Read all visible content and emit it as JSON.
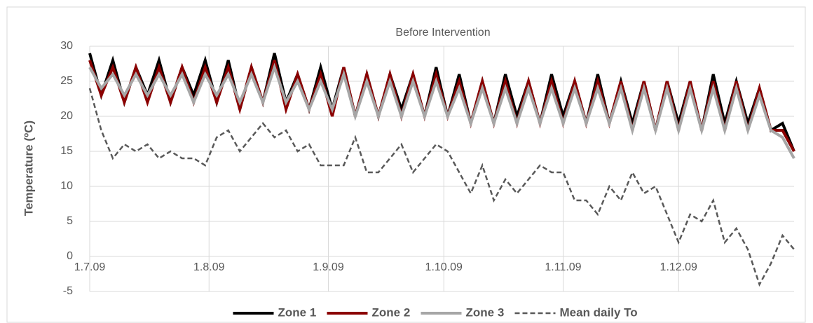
{
  "chart_data": {
    "type": "line",
    "title": "Before Intervention",
    "y_label": "Temperature (ºC)",
    "x": [
      "2009-07-01",
      "2009-07-04",
      "2009-07-07",
      "2009-07-10",
      "2009-07-13",
      "2009-07-16",
      "2009-07-19",
      "2009-07-22",
      "2009-07-25",
      "2009-07-28",
      "2009-07-31",
      "2009-08-03",
      "2009-08-06",
      "2009-08-09",
      "2009-08-12",
      "2009-08-15",
      "2009-08-18",
      "2009-08-21",
      "2009-08-24",
      "2009-08-27",
      "2009-08-30",
      "2009-09-02",
      "2009-09-05",
      "2009-09-08",
      "2009-09-11",
      "2009-09-14",
      "2009-09-17",
      "2009-09-20",
      "2009-09-23",
      "2009-09-26",
      "2009-09-29",
      "2009-10-02",
      "2009-10-05",
      "2009-10-08",
      "2009-10-11",
      "2009-10-14",
      "2009-10-17",
      "2009-10-20",
      "2009-10-23",
      "2009-10-26",
      "2009-10-29",
      "2009-11-01",
      "2009-11-04",
      "2009-11-07",
      "2009-11-10",
      "2009-11-13",
      "2009-11-16",
      "2009-11-19",
      "2009-11-22",
      "2009-11-25",
      "2009-11-28",
      "2009-12-01",
      "2009-12-04",
      "2009-12-07",
      "2009-12-10",
      "2009-12-13",
      "2009-12-16",
      "2009-12-19",
      "2009-12-22",
      "2009-12-25",
      "2009-12-28",
      "2009-12-31"
    ],
    "series": [
      {
        "name": "Zone 1",
        "color": "#000000",
        "dashed": false,
        "values": [
          29,
          23,
          28,
          22,
          27,
          23,
          28,
          22,
          27,
          23,
          28,
          22,
          28,
          21,
          27,
          22,
          29,
          22,
          26,
          21,
          27,
          21,
          27,
          20,
          26,
          20,
          26,
          21,
          26,
          20,
          27,
          20,
          26,
          19,
          25,
          19,
          26,
          20,
          25,
          19,
          26,
          20,
          25,
          19,
          26,
          19,
          25,
          19,
          25,
          18,
          25,
          19,
          25,
          18,
          26,
          19,
          25,
          19,
          24,
          18,
          19,
          15
        ]
      },
      {
        "name": "Zone 2",
        "color": "#8b0000",
        "dashed": false,
        "values": [
          28,
          23,
          27,
          22,
          27,
          22,
          27,
          22,
          27,
          22,
          27,
          22,
          27,
          21,
          27,
          22,
          28,
          21,
          26,
          21,
          26,
          20,
          27,
          20,
          26,
          20,
          26,
          20,
          26,
          20,
          26,
          20,
          25,
          19,
          25,
          19,
          25,
          19,
          25,
          19,
          25,
          19,
          25,
          19,
          25,
          19,
          25,
          18,
          25,
          18,
          25,
          18,
          25,
          18,
          25,
          18,
          25,
          18,
          24,
          18,
          18,
          15
        ]
      },
      {
        "name": "Zone 3",
        "color": "#a6a6a6",
        "dashed": false,
        "values": [
          27,
          24,
          26,
          23,
          26,
          23,
          26,
          23,
          26,
          22,
          26,
          23,
          26,
          22,
          26,
          22,
          27,
          22,
          25,
          21,
          25,
          21,
          26,
          20,
          25,
          20,
          25,
          20,
          25,
          20,
          25,
          20,
          24,
          19,
          24,
          19,
          24,
          19,
          24,
          19,
          24,
          19,
          24,
          19,
          24,
          19,
          24,
          18,
          24,
          18,
          24,
          18,
          24,
          18,
          24,
          18,
          24,
          18,
          23,
          18,
          17,
          14
        ]
      },
      {
        "name": "Mean daily To",
        "color": "#595959",
        "dashed": true,
        "values": [
          24,
          18,
          14,
          16,
          15,
          16,
          14,
          15,
          14,
          14,
          13,
          17,
          18,
          15,
          17,
          19,
          17,
          18,
          15,
          16,
          13,
          13,
          13,
          17,
          12,
          12,
          14,
          16,
          12,
          14,
          16,
          15,
          12,
          9,
          13,
          8,
          11,
          9,
          11,
          13,
          12,
          12,
          8,
          8,
          6,
          10,
          8,
          12,
          9,
          10,
          6,
          2,
          6,
          5,
          8,
          2,
          4,
          1,
          -4,
          -1,
          3,
          1
        ]
      }
    ],
    "xlim": [
      "2009-07-01",
      "2009-12-31"
    ],
    "xticks": [
      {
        "value": "2009-07-01",
        "label": "1.7.09"
      },
      {
        "value": "2009-08-01",
        "label": "1.8.09"
      },
      {
        "value": "2009-09-01",
        "label": "1.9.09"
      },
      {
        "value": "2009-10-01",
        "label": "1.10.09"
      },
      {
        "value": "2009-11-01",
        "label": "1.11.09"
      },
      {
        "value": "2009-12-01",
        "label": "1.12.09"
      }
    ],
    "ylim": [
      -5,
      30
    ],
    "yticks": [
      -5,
      0,
      5,
      10,
      15,
      20,
      25,
      30
    ],
    "grid": true,
    "legend": "bottom"
  }
}
